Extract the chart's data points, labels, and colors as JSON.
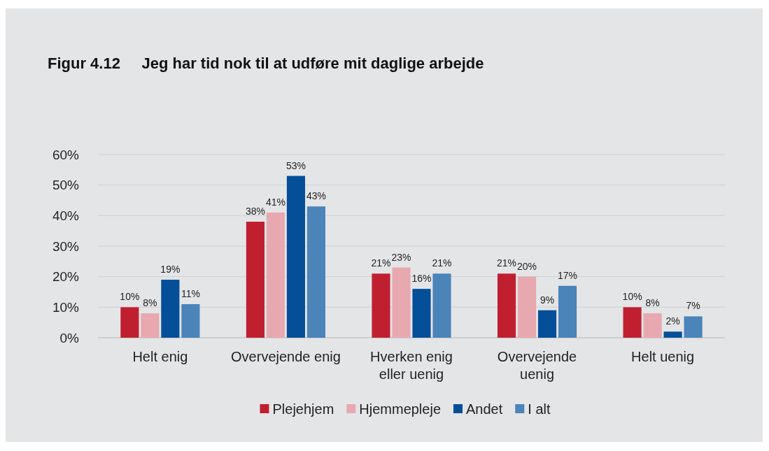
{
  "chart_data": {
    "type": "bar",
    "title": "Figur 4.12     Jeg har tid nok til at udføre mit daglige arbejde",
    "categories": [
      "Helt enig",
      "Overvejende enig",
      "Hverken enig eller uenig",
      "Overvejende uenig",
      "Helt uenig"
    ],
    "series": [
      {
        "name": "Plejehjem",
        "color": "#c01f30",
        "values": [
          10,
          38,
          21,
          21,
          10
        ],
        "value_labels": [
          "10%",
          "38%",
          "21%",
          "21%",
          "10%"
        ]
      },
      {
        "name": "Hjemmepleje",
        "color": "#e8a8af",
        "values": [
          8,
          41,
          23,
          20,
          8
        ],
        "value_labels": [
          "8%",
          "41%",
          "23%",
          "20%",
          "8%"
        ]
      },
      {
        "name": "Andet",
        "color": "#054e98",
        "values": [
          19,
          53,
          16,
          9,
          2
        ],
        "value_labels": [
          "19%",
          "53%",
          "16%",
          "9%",
          "2%"
        ]
      },
      {
        "name": "I alt",
        "color": "#4a84b9",
        "values": [
          11,
          43,
          21,
          17,
          7
        ],
        "value_labels": [
          "11%",
          "43%",
          "21%",
          "17%",
          "7%"
        ]
      }
    ],
    "ylim": [
      0,
      60
    ],
    "yticks": [
      {
        "value": 0,
        "label": "0%"
      },
      {
        "value": 10,
        "label": "10%"
      },
      {
        "value": 20,
        "label": "20%"
      },
      {
        "value": 30,
        "label": "30%"
      },
      {
        "value": 40,
        "label": "40%"
      },
      {
        "value": 50,
        "label": "50%"
      },
      {
        "value": 60,
        "label": "60%"
      }
    ],
    "grid": "y",
    "legend": "bottom"
  }
}
